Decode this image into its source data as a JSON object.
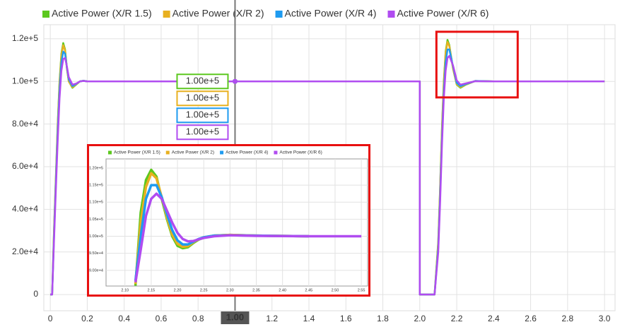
{
  "chart_data": [
    {
      "type": "line",
      "x": [
        0,
        0.01,
        0.02,
        0.03,
        0.04,
        0.05,
        0.06,
        0.07,
        0.08,
        0.09,
        0.1,
        0.12,
        0.14,
        0.16,
        0.18,
        0.2,
        0.25,
        1.0,
        2.0,
        2.0,
        2.08,
        2.1,
        2.11,
        2.12,
        2.13,
        2.14,
        2.15,
        2.16,
        2.18,
        2.2,
        2.22,
        2.25,
        2.3,
        2.4,
        3.0
      ],
      "series": [
        {
          "name": "Active Power (X/R 1.5)",
          "color": "#5cc81e",
          "values": [
            0,
            0,
            30000,
            55000,
            80000,
            100000,
            113000,
            118000,
            115000,
            106000,
            100000,
            97000,
            98500,
            100000,
            100300,
            100000,
            100000,
            100000,
            100000,
            0,
            0,
            25000,
            50000,
            78000,
            100000,
            114000,
            119500,
            117000,
            106000,
            98500,
            97000,
            98500,
            100200,
            100000,
            100000
          ]
        },
        {
          "name": "Active Power (X/R 2)",
          "color": "#e8b020",
          "values": [
            0,
            0,
            29000,
            54000,
            79000,
            99000,
            112000,
            117000,
            114500,
            106000,
            100000,
            97300,
            98600,
            100000,
            100300,
            100000,
            100000,
            100000,
            100000,
            0,
            0,
            24000,
            49000,
            77000,
            99000,
            113000,
            118500,
            116500,
            106000,
            98700,
            97300,
            98600,
            100200,
            100000,
            100000
          ]
        },
        {
          "name": "Active Power (X/R 4)",
          "color": "#1e9bf0",
          "values": [
            0,
            0,
            27000,
            52000,
            76000,
            96000,
            109000,
            114000,
            113000,
            106500,
            101000,
            97800,
            98800,
            100000,
            100300,
            100000,
            100000,
            100000,
            100000,
            0,
            0,
            22000,
            46000,
            73000,
            95000,
            109000,
            115000,
            115000,
            107000,
            99300,
            97800,
            98800,
            100200,
            100000,
            100000
          ]
        },
        {
          "name": "Active Power (X/R 6)",
          "color": "#b04cf0",
          "values": [
            0,
            0,
            25000,
            49000,
            72000,
            92000,
            105000,
            110500,
            111000,
            107000,
            102000,
            98500,
            99000,
            100000,
            100200,
            100000,
            100000,
            100000,
            100000,
            0,
            0,
            20000,
            43000,
            70000,
            92000,
            105000,
            111000,
            112000,
            107500,
            100500,
            98500,
            99100,
            100100,
            100000,
            100000
          ]
        }
      ],
      "xlim": [
        -0.035,
        3.057
      ],
      "ylim": [
        -7600,
        126600
      ],
      "xticks": [
        0,
        0.2,
        0.4,
        0.6,
        0.8,
        {
          "value": 1,
          "label": "1.0"
        },
        1.2,
        1.4,
        1.6,
        1.8,
        {
          "value": 2,
          "label": "2.0"
        },
        2.2,
        2.4,
        2.6,
        2.8,
        {
          "value": 3,
          "label": "3.0"
        }
      ],
      "yticks": [
        0,
        {
          "value": 20000,
          "label": "2.0e+4"
        },
        {
          "value": 40000,
          "label": "4.0e+4"
        },
        {
          "value": 60000,
          "label": "6.0e+4"
        },
        {
          "value": 80000,
          "label": "8.0e+4"
        },
        {
          "value": 100000,
          "label": "1.0e+5"
        },
        {
          "value": 120000,
          "label": "1.2e+5"
        }
      ],
      "grid": true,
      "cursor": {
        "x": {
          "value": 1,
          "label": "1.00"
        },
        "values": [
          100000,
          100000,
          100000,
          100000
        ],
        "value_labels": [
          "1.00e+5",
          "1.00e+5",
          "1.00e+5",
          "1.00e+5"
        ]
      },
      "zoom_box": {
        "xlim": [
          2.09,
          2.53
        ],
        "ylim": [
          92500,
          123300
        ],
        "color": "#e81010"
      }
    },
    {
      "type": "line",
      "x": [
        2.12,
        2.13,
        2.14,
        2.15,
        2.16,
        2.17,
        2.18,
        2.19,
        2.2,
        2.21,
        2.22,
        2.23,
        2.24,
        2.25,
        2.27,
        2.3,
        2.35,
        2.45,
        2.55
      ],
      "series": [
        {
          "name": "Active Power (X/R 1.5)",
          "color": "#5cc81e",
          "values": [
            85500,
            107000,
            116500,
            119500,
            117500,
            111000,
            105000,
            100000,
            97200,
            96500,
            96800,
            98000,
            99000,
            99600,
            100200,
            100400,
            100200,
            100000,
            null
          ]
        },
        {
          "name": "Active Power (X/R 2)",
          "color": "#e8b020",
          "values": [
            86000,
            104000,
            114500,
            118500,
            117000,
            111500,
            105500,
            100500,
            97800,
            96900,
            97100,
            98200,
            99100,
            99700,
            100200,
            100400,
            100200,
            100000,
            null
          ]
        },
        {
          "name": "Active Power (X/R 4)",
          "color": "#1e9bf0",
          "values": [
            87000,
            100000,
            111000,
            115000,
            115000,
            111500,
            106500,
            101800,
            98800,
            97600,
            97600,
            98400,
            99200,
            99700,
            100200,
            100300,
            100200,
            100000,
            null
          ]
        },
        {
          "name": "Active Power (X/R 6)",
          "color": "#b04cf0",
          "values": [
            86500,
            96000,
            106000,
            111000,
            112500,
            111000,
            107500,
            104000,
            101000,
            99200,
            98500,
            98600,
            99100,
            99500,
            100000,
            100300,
            100100,
            100000,
            100000
          ]
        }
      ],
      "xlim": [
        2.064,
        2.562
      ],
      "ylim": [
        85400,
        122700
      ],
      "xticks": [
        {
          "value": 2.1,
          "label": "2.10"
        },
        2.15,
        {
          "value": 2.2,
          "label": "2.20"
        },
        2.25,
        {
          "value": 2.3,
          "label": "2.30"
        },
        2.35,
        {
          "value": 2.4,
          "label": "2.40"
        },
        2.45,
        {
          "value": 2.5,
          "label": "2.50"
        },
        2.55
      ],
      "yticks": [
        {
          "value": 90000,
          "label": "9.00e+4"
        },
        {
          "value": 95000,
          "label": "9.50e+4"
        },
        {
          "value": 100000,
          "label": "1.00e+5"
        },
        {
          "value": 105000,
          "label": "1.05e+5"
        },
        {
          "value": 110000,
          "label": "1.10e+5"
        },
        {
          "value": 115000,
          "label": "1.15e+5"
        },
        {
          "value": 120000,
          "label": "1.20e+5"
        }
      ],
      "grid": true
    }
  ]
}
